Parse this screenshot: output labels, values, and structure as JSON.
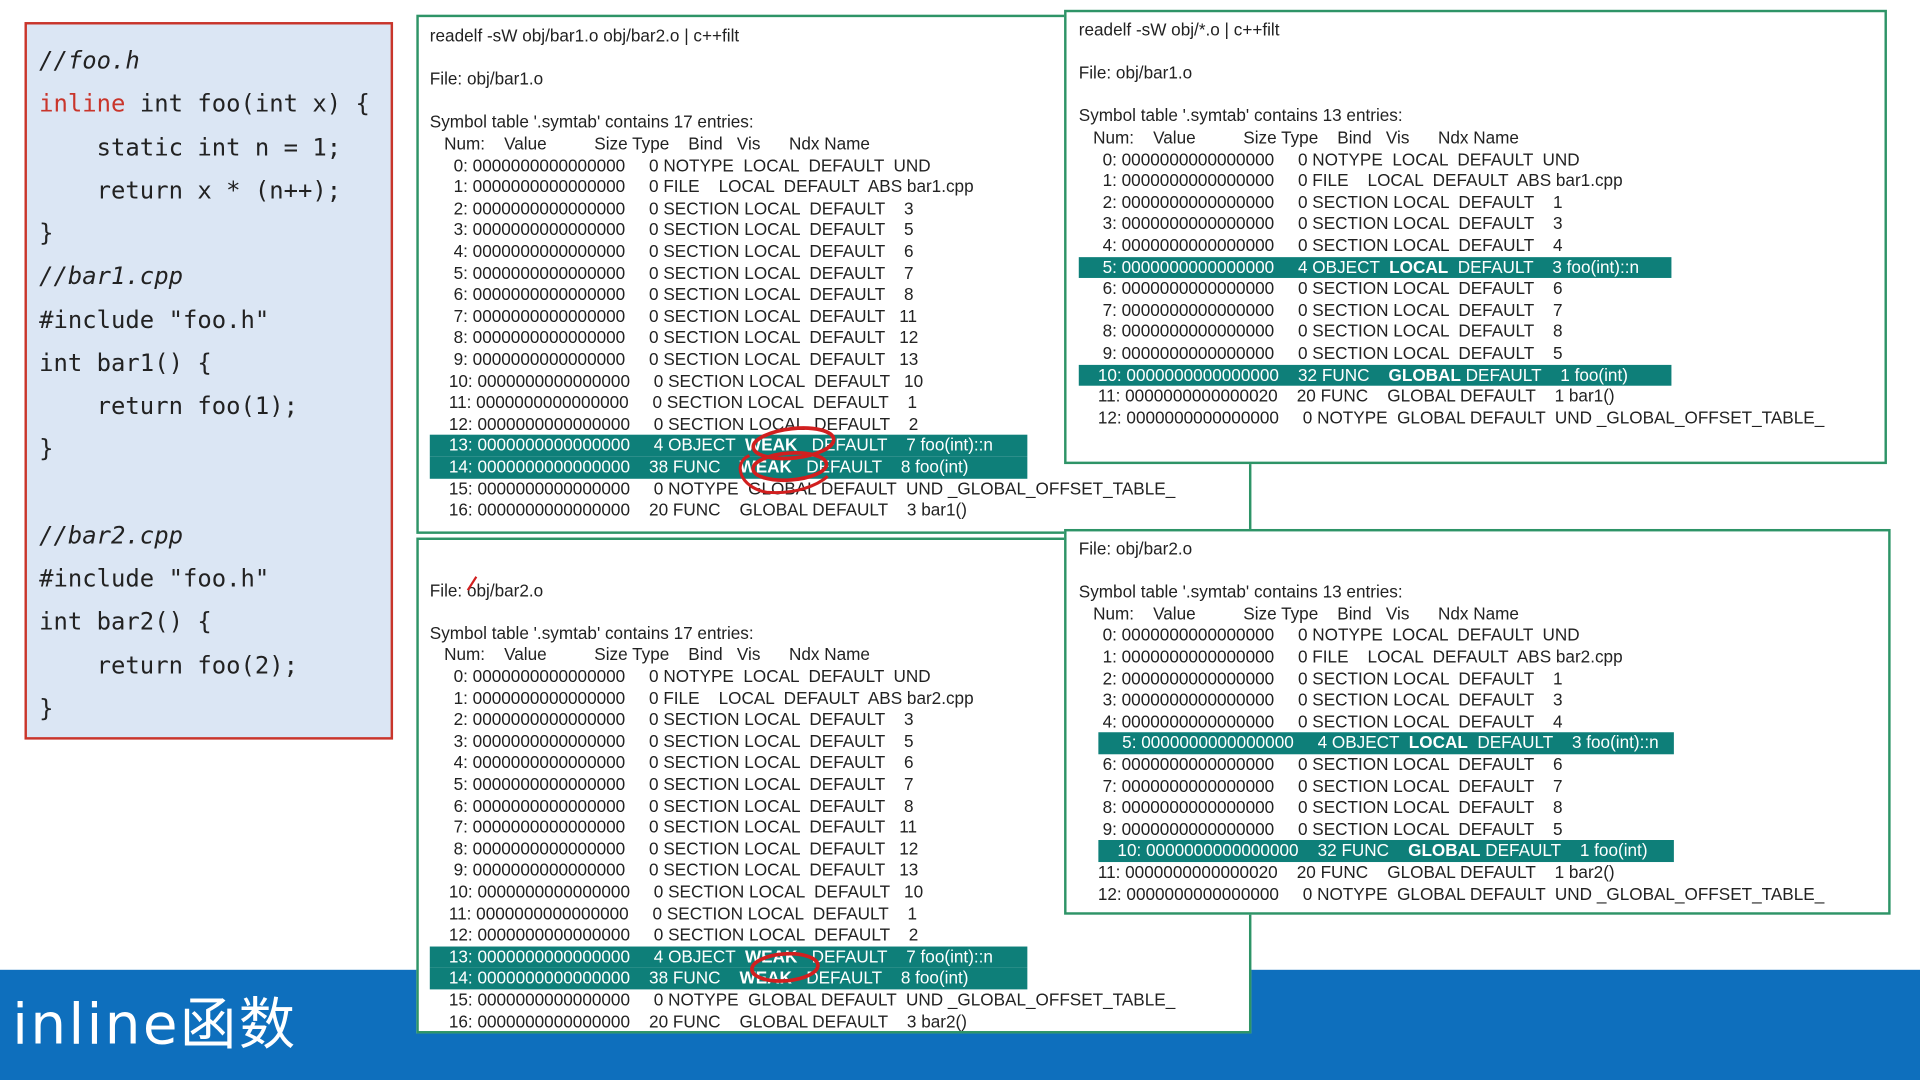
{
  "slide": {
    "title": "inline函数"
  },
  "code": {
    "lines": [
      [
        {
          "t": "//foo.h",
          "c": "cm"
        }
      ],
      [
        {
          "t": "inline",
          "c": "kw"
        },
        {
          "t": " int foo(int x) {"
        }
      ],
      [
        {
          "t": "    static int n = 1;"
        }
      ],
      [
        {
          "t": "    return x * (n++);"
        }
      ],
      [
        {
          "t": "}"
        }
      ],
      [
        {
          "t": "//bar1.cpp",
          "c": "cm"
        }
      ],
      [
        {
          "t": "#include \"foo.h\""
        }
      ],
      [
        {
          "t": "int bar1() {"
        }
      ],
      [
        {
          "t": "    return foo(1);"
        }
      ],
      [
        {
          "t": "}"
        }
      ],
      [
        {
          "t": ""
        }
      ],
      [
        {
          "t": "//bar2.cpp",
          "c": "cm"
        }
      ],
      [
        {
          "t": "#include \"foo.h\""
        }
      ],
      [
        {
          "t": "int bar2() {"
        }
      ],
      [
        {
          "t": "    return foo(2);"
        }
      ],
      [
        {
          "t": "}"
        }
      ]
    ]
  },
  "panels": [
    {
      "id": "readelf-bar1-bar2-top",
      "lines": [
        {
          "t": "readelf -sW obj/bar1.o obj/bar2.o | c++filt"
        },
        {
          "t": ""
        },
        {
          "t": "File: obj/bar1.o"
        },
        {
          "t": ""
        },
        {
          "t": "Symbol table '.symtab' contains 17 entries:"
        },
        {
          "t": "   Num:    Value          Size Type    Bind   Vis      Ndx Name"
        },
        {
          "t": "     0: 0000000000000000     0 NOTYPE  LOCAL  DEFAULT  UND"
        },
        {
          "t": "     1: 0000000000000000     0 FILE    LOCAL  DEFAULT  ABS bar1.cpp"
        },
        {
          "t": "     2: 0000000000000000     0 SECTION LOCAL  DEFAULT    3"
        },
        {
          "t": "     3: 0000000000000000     0 SECTION LOCAL  DEFAULT    5"
        },
        {
          "t": "     4: 0000000000000000     0 SECTION LOCAL  DEFAULT    6"
        },
        {
          "t": "     5: 0000000000000000     0 SECTION LOCAL  DEFAULT    7"
        },
        {
          "t": "     6: 0000000000000000     0 SECTION LOCAL  DEFAULT    8"
        },
        {
          "t": "     7: 0000000000000000     0 SECTION LOCAL  DEFAULT   11"
        },
        {
          "t": "     8: 0000000000000000     0 SECTION LOCAL  DEFAULT   12"
        },
        {
          "t": "     9: 0000000000000000     0 SECTION LOCAL  DEFAULT   13"
        },
        {
          "t": "    10: 0000000000000000     0 SECTION LOCAL  DEFAULT   10"
        },
        {
          "t": "    11: 0000000000000000     0 SECTION LOCAL  DEFAULT    1"
        },
        {
          "t": "    12: 0000000000000000     0 SECTION LOCAL  DEFAULT    2"
        },
        {
          "t": "    13: 0000000000000000     4 OBJECT  ",
          "hl": true,
          "b": "WEAK",
          "a": "   DEFAULT    7 foo(int)::n"
        },
        {
          "t": "    14: 0000000000000000    38 FUNC    ",
          "hl": true,
          "b": "WEAK",
          "a": "   DEFAULT    8 foo(int)"
        },
        {
          "t": "    15: 0000000000000000     0 NOTYPE  GLOBAL DEFAULT  UND _GLOBAL_OFFSET_TABLE_"
        },
        {
          "t": "    16: 0000000000000000    20 FUNC    GLOBAL DEFAULT    3 bar1()"
        }
      ]
    },
    {
      "id": "readelf-bar2-bottom",
      "lines": [
        {
          "t": ""
        },
        {
          "t": "File: obj/bar2.o"
        },
        {
          "t": ""
        },
        {
          "t": "Symbol table '.symtab' contains 17 entries:"
        },
        {
          "t": "   Num:    Value          Size Type    Bind   Vis      Ndx Name"
        },
        {
          "t": "     0: 0000000000000000     0 NOTYPE  LOCAL  DEFAULT  UND"
        },
        {
          "t": "     1: 0000000000000000     0 FILE    LOCAL  DEFAULT  ABS bar2.cpp"
        },
        {
          "t": "     2: 0000000000000000     0 SECTION LOCAL  DEFAULT    3"
        },
        {
          "t": "     3: 0000000000000000     0 SECTION LOCAL  DEFAULT    5"
        },
        {
          "t": "     4: 0000000000000000     0 SECTION LOCAL  DEFAULT    6"
        },
        {
          "t": "     5: 0000000000000000     0 SECTION LOCAL  DEFAULT    7"
        },
        {
          "t": "     6: 0000000000000000     0 SECTION LOCAL  DEFAULT    8"
        },
        {
          "t": "     7: 0000000000000000     0 SECTION LOCAL  DEFAULT   11"
        },
        {
          "t": "     8: 0000000000000000     0 SECTION LOCAL  DEFAULT   12"
        },
        {
          "t": "     9: 0000000000000000     0 SECTION LOCAL  DEFAULT   13"
        },
        {
          "t": "    10: 0000000000000000     0 SECTION LOCAL  DEFAULT   10"
        },
        {
          "t": "    11: 0000000000000000     0 SECTION LOCAL  DEFAULT    1"
        },
        {
          "t": "    12: 0000000000000000     0 SECTION LOCAL  DEFAULT    2"
        },
        {
          "t": "    13: 0000000000000000     4 OBJECT  ",
          "hl": true,
          "b": "WEAK",
          "a": "   DEFAULT    7 foo(int)::n"
        },
        {
          "t": "    14: 0000000000000000    38 FUNC    ",
          "hl": true,
          "b": "WEAK",
          "a": "   DEFAULT    8 foo(int)"
        },
        {
          "t": "    15: 0000000000000000     0 NOTYPE  GLOBAL DEFAULT  UND _GLOBAL_OFFSET_TABLE_"
        },
        {
          "t": "    16: 0000000000000000    20 FUNC    GLOBAL DEFAULT    3 bar2()"
        }
      ]
    },
    {
      "id": "readelf-all-bar1",
      "lines": [
        {
          "t": "readelf -sW obj/*.o | c++filt"
        },
        {
          "t": ""
        },
        {
          "t": "File: obj/bar1.o"
        },
        {
          "t": ""
        },
        {
          "t": "Symbol table '.symtab' contains 13 entries:"
        },
        {
          "t": "   Num:    Value          Size Type    Bind   Vis      Ndx Name"
        },
        {
          "t": "     0: 0000000000000000     0 NOTYPE  LOCAL  DEFAULT  UND"
        },
        {
          "t": "     1: 0000000000000000     0 FILE    LOCAL  DEFAULT  ABS bar1.cpp"
        },
        {
          "t": "     2: 0000000000000000     0 SECTION LOCAL  DEFAULT    1"
        },
        {
          "t": "     3: 0000000000000000     0 SECTION LOCAL  DEFAULT    3"
        },
        {
          "t": "     4: 0000000000000000     0 SECTION LOCAL  DEFAULT    4"
        },
        {
          "t": "     5: 0000000000000000     4 OBJECT  ",
          "hl": true,
          "b": "LOCAL",
          "a": "  DEFAULT    3 foo(int)::n"
        },
        {
          "t": "     6: 0000000000000000     0 SECTION LOCAL  DEFAULT    6"
        },
        {
          "t": "     7: 0000000000000000     0 SECTION LOCAL  DEFAULT    7"
        },
        {
          "t": "     8: 0000000000000000     0 SECTION LOCAL  DEFAULT    8"
        },
        {
          "t": "     9: 0000000000000000     0 SECTION LOCAL  DEFAULT    5"
        },
        {
          "t": "    10: 0000000000000000    32 FUNC    ",
          "hl": true,
          "b": "GLOBAL",
          "a": " DEFAULT    1 foo(int)"
        },
        {
          "t": "    11: 0000000000000020    20 FUNC    GLOBAL DEFAULT    1 bar1()"
        },
        {
          "t": "    12: 0000000000000000     0 NOTYPE  GLOBAL DEFAULT  UND _GLOBAL_OFFSET_TABLE_"
        }
      ]
    },
    {
      "id": "readelf-all-bar2",
      "lines": [
        {
          "t": "File: obj/bar2.o"
        },
        {
          "t": ""
        },
        {
          "t": "Symbol table '.symtab' contains 13 entries:"
        },
        {
          "t": "   Num:    Value          Size Type    Bind   Vis      Ndx Name"
        },
        {
          "t": "     0: 0000000000000000     0 NOTYPE  LOCAL  DEFAULT  UND"
        },
        {
          "t": "     1: 0000000000000000     0 FILE    LOCAL  DEFAULT  ABS bar2.cpp"
        },
        {
          "t": "     2: 0000000000000000     0 SECTION LOCAL  DEFAULT    1"
        },
        {
          "t": "     3: 0000000000000000     0 SECTION LOCAL  DEFAULT    3"
        },
        {
          "t": "     4: 0000000000000000     0 SECTION LOCAL  DEFAULT    4"
        },
        {
          "t": "     5: 0000000000000000     4 OBJECT  ",
          "hl": true,
          "b": "LOCAL",
          "a": "  DEFAULT    3 foo(int)::n"
        },
        {
          "t": "     6: 0000000000000000     0 SECTION LOCAL  DEFAULT    6"
        },
        {
          "t": "     7: 0000000000000000     0 SECTION LOCAL  DEFAULT    7"
        },
        {
          "t": "     8: 0000000000000000     0 SECTION LOCAL  DEFAULT    8"
        },
        {
          "t": "     9: 0000000000000000     0 SECTION LOCAL  DEFAULT    5"
        },
        {
          "t": "    10: 0000000000000000    32 FUNC    ",
          "hl": true,
          "b": "GLOBAL",
          "a": " DEFAULT    1 foo(int)"
        },
        {
          "t": "    11: 0000000000000020    20 FUNC    GLOBAL DEFAULT    1 bar2()"
        },
        {
          "t": "    12: 0000000000000000     0 NOTYPE  GLOBAL DEFAULT  UND _GLOBAL_OFFSET_TABLE_"
        }
      ]
    }
  ],
  "colors": {
    "accent_bar": "#0e6fbd",
    "highlight": "#0e7f79",
    "panel_border": "#2e9467",
    "code_border": "#c9352b",
    "code_bg": "#dbe6f4",
    "annotation_ink": "#d11f1f"
  }
}
